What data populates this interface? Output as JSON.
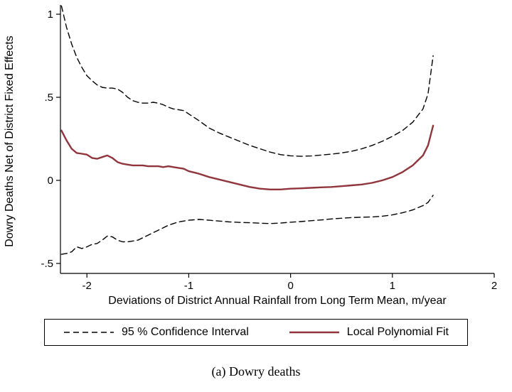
{
  "figure": {
    "caption": "(a) Dowry deaths"
  },
  "legend": {
    "items": [
      {
        "label": "95 % Confidence Interval",
        "style": "dashed",
        "color": "#000000"
      },
      {
        "label": "Local Polynomial Fit",
        "style": "solid",
        "color": "#90353b"
      }
    ]
  },
  "chart_data": {
    "type": "line",
    "title": "",
    "xlabel": "Deviations of District Annual Rainfall from Long Term Mean, m/year",
    "ylabel": "Dowry Deaths Net of District Fixed Effects",
    "xlim": [
      -2.26,
      2.0
    ],
    "ylim": [
      -0.56,
      1.03
    ],
    "grid": false,
    "legend_position": "bottom",
    "x_ticks": [
      {
        "value": -2,
        "label": "-2"
      },
      {
        "value": -1,
        "label": "-1"
      },
      {
        "value": 0,
        "label": "0"
      },
      {
        "value": 1,
        "label": "1"
      },
      {
        "value": 2,
        "label": "2"
      }
    ],
    "y_ticks": [
      {
        "value": 1,
        "label": "1"
      },
      {
        "value": 0.5,
        "label": ".5"
      },
      {
        "value": 0,
        "label": "0"
      },
      {
        "value": -0.5,
        "label": "-.5"
      }
    ],
    "x": [
      -2.25,
      -2.2,
      -2.15,
      -2.1,
      -2.05,
      -2.0,
      -1.95,
      -1.9,
      -1.85,
      -1.8,
      -1.75,
      -1.7,
      -1.65,
      -1.6,
      -1.55,
      -1.5,
      -1.45,
      -1.4,
      -1.35,
      -1.3,
      -1.25,
      -1.2,
      -1.15,
      -1.1,
      -1.05,
      -1.0,
      -0.9,
      -0.8,
      -0.7,
      -0.6,
      -0.5,
      -0.4,
      -0.3,
      -0.2,
      -0.1,
      0.0,
      0.1,
      0.2,
      0.3,
      0.4,
      0.5,
      0.6,
      0.7,
      0.8,
      0.9,
      1.0,
      1.1,
      1.2,
      1.3,
      1.35,
      1.4
    ],
    "series": [
      {
        "name": "95% CI upper bound",
        "style": "dashed",
        "color": "#000000",
        "width": 1.4,
        "values": [
          1.05,
          0.92,
          0.82,
          0.74,
          0.68,
          0.63,
          0.6,
          0.575,
          0.56,
          0.555,
          0.555,
          0.55,
          0.53,
          0.5,
          0.48,
          0.47,
          0.465,
          0.465,
          0.47,
          0.465,
          0.455,
          0.44,
          0.43,
          0.425,
          0.42,
          0.4,
          0.36,
          0.315,
          0.285,
          0.26,
          0.235,
          0.21,
          0.19,
          0.17,
          0.155,
          0.148,
          0.145,
          0.147,
          0.152,
          0.158,
          0.165,
          0.175,
          0.19,
          0.21,
          0.235,
          0.265,
          0.3,
          0.35,
          0.43,
          0.52,
          0.75
        ]
      },
      {
        "name": "Local Polynomial Fit",
        "style": "solid",
        "color": "#90353b",
        "width": 2.4,
        "values": [
          0.3,
          0.24,
          0.19,
          0.165,
          0.16,
          0.155,
          0.135,
          0.13,
          0.14,
          0.15,
          0.135,
          0.11,
          0.1,
          0.095,
          0.09,
          0.09,
          0.09,
          0.085,
          0.085,
          0.085,
          0.08,
          0.085,
          0.08,
          0.075,
          0.07,
          0.055,
          0.04,
          0.02,
          0.005,
          -0.01,
          -0.025,
          -0.04,
          -0.05,
          -0.055,
          -0.055,
          -0.05,
          -0.048,
          -0.045,
          -0.042,
          -0.04,
          -0.035,
          -0.03,
          -0.025,
          -0.015,
          0.0,
          0.02,
          0.05,
          0.09,
          0.15,
          0.21,
          0.33
        ]
      },
      {
        "name": "95% CI lower bound",
        "style": "dashed",
        "color": "#000000",
        "width": 1.4,
        "values": [
          -0.445,
          -0.44,
          -0.43,
          -0.4,
          -0.41,
          -0.4,
          -0.385,
          -0.38,
          -0.36,
          -0.335,
          -0.34,
          -0.36,
          -0.37,
          -0.37,
          -0.365,
          -0.36,
          -0.345,
          -0.33,
          -0.315,
          -0.3,
          -0.285,
          -0.27,
          -0.26,
          -0.25,
          -0.245,
          -0.24,
          -0.235,
          -0.24,
          -0.245,
          -0.25,
          -0.253,
          -0.255,
          -0.258,
          -0.26,
          -0.257,
          -0.252,
          -0.248,
          -0.243,
          -0.238,
          -0.232,
          -0.228,
          -0.224,
          -0.222,
          -0.22,
          -0.216,
          -0.208,
          -0.195,
          -0.178,
          -0.152,
          -0.133,
          -0.09
        ]
      }
    ]
  }
}
